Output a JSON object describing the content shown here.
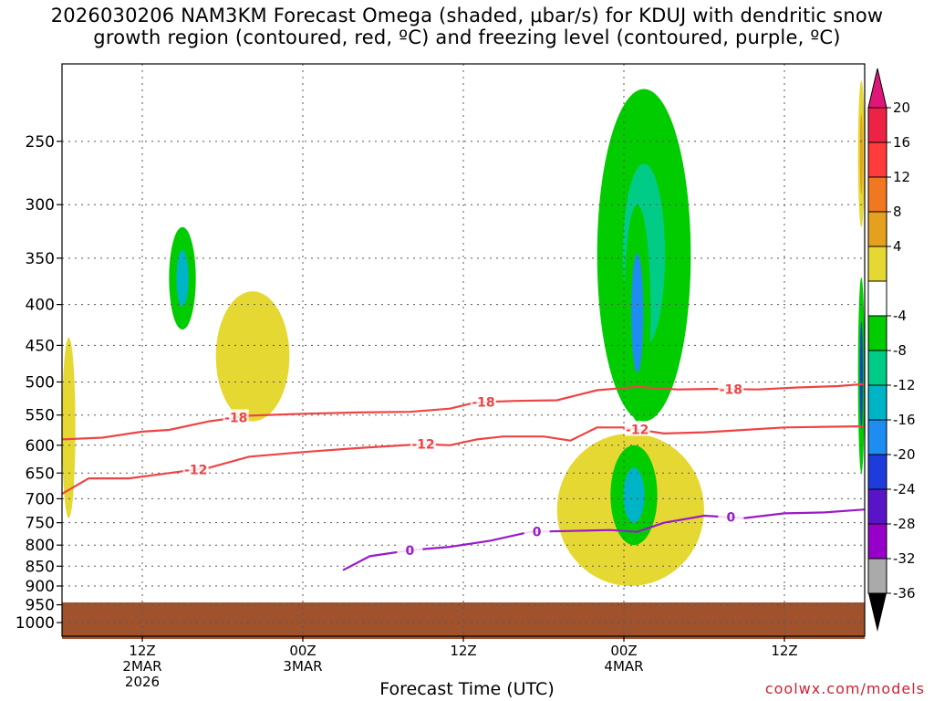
{
  "title_line1": "2026030206 NAM3KM Forecast Omega (shaded, μbar/s) for KDUJ with dendritic snow",
  "title_line2": "growth region (contoured, red, ºC) and freezing level (contoured, purple, ºC)",
  "footer": {
    "xlabel": "Forecast Time (UTC)",
    "credit": "coolwx.com/models"
  },
  "chart_data": {
    "type": "time-height cross section",
    "title": "2026030206 NAM3KM Forecast Omega (shaded, μbar/s) for KDUJ with dendritic snow growth region (contoured, red, ºC) and freezing level (contoured, purple, ºC)",
    "xlabel": "Forecast Time (UTC)",
    "xlim_hours_after_2026030206": [
      0,
      60
    ],
    "x_ticks": [
      {
        "hour": 6,
        "lines": [
          "12Z",
          "2MAR",
          "2026"
        ]
      },
      {
        "hour": 18,
        "lines": [
          "00Z",
          "3MAR"
        ]
      },
      {
        "hour": 30,
        "lines": [
          "12Z"
        ]
      },
      {
        "hour": 42,
        "lines": [
          "00Z",
          "4MAR"
        ]
      },
      {
        "hour": 54,
        "lines": [
          "12Z"
        ]
      }
    ],
    "y_scale": "log pressure (hPa), inverted",
    "ylim_hPa": [
      1040,
      200
    ],
    "y_ticks": [
      250,
      300,
      350,
      400,
      450,
      500,
      550,
      600,
      650,
      700,
      750,
      800,
      850,
      900,
      950,
      1000
    ],
    "grid": true,
    "colorbar": {
      "labels": [
        20,
        16,
        12,
        8,
        4,
        -4,
        -8,
        -12,
        -16,
        -20,
        -24,
        -28,
        -32,
        -36
      ],
      "bands": [
        {
          "color": "#ee2244"
        },
        {
          "color": "#ff3b3b"
        },
        {
          "color": "#f07820"
        },
        {
          "color": "#e6a020"
        },
        {
          "color": "#e6d832"
        },
        {
          "color": "#ffffff"
        },
        {
          "color": "#00cc00"
        },
        {
          "color": "#00cc88"
        },
        {
          "color": "#00b4c8"
        },
        {
          "color": "#1e8cf0"
        },
        {
          "color": "#1e3cdc"
        },
        {
          "color": "#5a14c8"
        },
        {
          "color": "#9600c8"
        },
        {
          "color": "#aaaaaa"
        }
      ],
      "top_cap_color": "#e0157a",
      "bottom_cap_color": "#000000"
    },
    "contours": [
      {
        "level": -18,
        "color": "#ee4444",
        "label_hours": [
          13,
          31.5,
          50
        ],
        "points": [
          [
            0,
            590
          ],
          [
            3,
            587
          ],
          [
            6,
            577
          ],
          [
            8,
            574
          ],
          [
            11,
            560
          ],
          [
            14,
            551
          ],
          [
            18,
            548
          ],
          [
            22,
            546
          ],
          [
            26,
            545
          ],
          [
            29,
            540
          ],
          [
            31,
            530
          ],
          [
            34,
            528
          ],
          [
            37,
            527
          ],
          [
            40,
            512
          ],
          [
            43,
            507
          ],
          [
            46,
            511
          ],
          [
            49,
            510
          ],
          [
            52,
            511
          ],
          [
            55,
            508
          ],
          [
            58,
            506
          ],
          [
            60,
            503
          ]
        ]
      },
      {
        "level": -12,
        "color": "#ee4444",
        "label_hours": [
          10,
          27,
          43
        ],
        "points": [
          [
            0,
            690
          ],
          [
            2,
            660
          ],
          [
            5,
            660
          ],
          [
            8,
            650
          ],
          [
            11,
            640
          ],
          [
            14,
            620
          ],
          [
            18,
            612
          ],
          [
            22,
            605
          ],
          [
            27,
            598
          ],
          [
            29,
            600
          ],
          [
            30,
            595
          ],
          [
            31,
            590
          ],
          [
            33,
            585
          ],
          [
            36,
            585
          ],
          [
            38,
            592
          ],
          [
            40,
            570
          ],
          [
            42,
            570
          ],
          [
            45,
            580
          ],
          [
            48,
            578
          ],
          [
            51,
            574
          ],
          [
            54,
            570
          ],
          [
            57,
            569
          ],
          [
            60,
            568
          ]
        ]
      },
      {
        "level": 0,
        "color": "#9a1ac8",
        "label_hours": [
          26,
          35.5,
          50
        ],
        "points": [
          [
            21,
            860
          ],
          [
            23,
            826
          ],
          [
            26,
            812
          ],
          [
            29,
            804
          ],
          [
            32,
            790
          ],
          [
            35,
            770
          ],
          [
            38,
            768
          ],
          [
            41,
            766
          ],
          [
            43,
            770
          ],
          [
            45,
            750
          ],
          [
            48,
            735
          ],
          [
            51,
            740
          ],
          [
            54,
            730
          ],
          [
            57,
            728
          ],
          [
            60,
            722
          ]
        ]
      }
    ],
    "omega_regions": [
      {
        "sign": "positive",
        "max": 8,
        "hours": [
          0,
          1
        ],
        "p_hPa": [
          440,
          740
        ]
      },
      {
        "sign": "positive",
        "max": 8,
        "hours": [
          11.5,
          17
        ],
        "p_hPa": [
          385,
          560
        ]
      },
      {
        "sign": "negative",
        "min": -12,
        "hours": [
          8,
          10
        ],
        "p_hPa": [
          320,
          430
        ]
      },
      {
        "sign": "negative",
        "min": -8,
        "hours": [
          40,
          47
        ],
        "p_hPa": [
          215,
          560
        ]
      },
      {
        "sign": "negative",
        "min": -16,
        "hours": [
          42,
          44
        ],
        "p_hPa": [
          300,
          560
        ]
      },
      {
        "sign": "positive",
        "max": 8,
        "hours": [
          37,
          48
        ],
        "p_hPa": [
          580,
          900
        ]
      },
      {
        "sign": "negative",
        "min": -12,
        "hours": [
          41,
          44.5
        ],
        "p_hPa": [
          600,
          800
        ]
      },
      {
        "sign": "positive",
        "max": 12,
        "hours": [
          59.5,
          60
        ],
        "p_hPa": [
          210,
          320
        ]
      },
      {
        "sign": "negative",
        "min": -24,
        "hours": [
          59.5,
          60
        ],
        "p_hPa": [
          370,
          650
        ]
      }
    ],
    "terrain": {
      "color": "#a0522d",
      "surface_hPa": 965
    }
  }
}
